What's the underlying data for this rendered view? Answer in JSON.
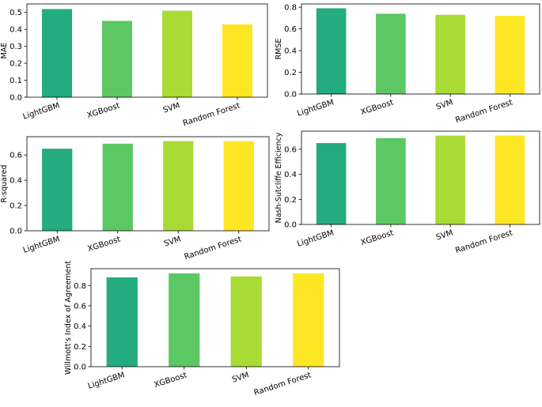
{
  "chart_data": [
    {
      "type": "bar",
      "categories": [
        "LightGBM",
        "XGBoost",
        "SVM",
        "Random Forest"
      ],
      "values": [
        0.52,
        0.45,
        0.51,
        0.43
      ],
      "xlabel": "",
      "ylabel": "MAE",
      "ylim": [
        0,
        0.55
      ],
      "yticks": [
        "0.0",
        "0.1",
        "0.2",
        "0.3",
        "0.4",
        "0.5"
      ],
      "grid": false,
      "legend": "none"
    },
    {
      "type": "bar",
      "categories": [
        "LightGBM",
        "XGBoost",
        "SVM",
        "Random Forest"
      ],
      "values": [
        0.79,
        0.74,
        0.73,
        0.72
      ],
      "xlabel": "",
      "ylabel": "RMSE",
      "ylim": [
        0,
        0.83
      ],
      "yticks": [
        "0.0",
        "0.2",
        "0.4",
        "0.6",
        "0.8"
      ],
      "grid": false,
      "legend": "none"
    },
    {
      "type": "bar",
      "categories": [
        "LightGBM",
        "XGBoost",
        "SVM",
        "Random Forest"
      ],
      "values": [
        0.65,
        0.69,
        0.71,
        0.71
      ],
      "xlabel": "",
      "ylabel": "R-squared",
      "ylim": [
        0,
        0.745
      ],
      "yticks": [
        "0.0",
        "0.2",
        "0.4",
        "0.6"
      ],
      "grid": false,
      "legend": "none"
    },
    {
      "type": "bar",
      "categories": [
        "LightGBM",
        "XGBoost",
        "SVM",
        "Random Forest"
      ],
      "values": [
        0.65,
        0.69,
        0.71,
        0.71
      ],
      "xlabel": "",
      "ylabel": "Nash-Sutcliffe Efficiency",
      "ylim": [
        0,
        0.745
      ],
      "yticks": [
        "0.0",
        "0.2",
        "0.4",
        "0.6"
      ],
      "grid": false,
      "legend": "none"
    },
    {
      "type": "bar",
      "categories": [
        "LightGBM",
        "XGBoost",
        "SVM",
        "Random Forest"
      ],
      "values": [
        0.88,
        0.92,
        0.89,
        0.92
      ],
      "xlabel": "",
      "ylabel": "Willmott's Index of Agreement",
      "ylim": [
        0,
        0.966
      ],
      "yticks": [
        "0.0",
        "0.2",
        "0.4",
        "0.6",
        "0.8"
      ],
      "grid": false,
      "legend": "none"
    }
  ],
  "colors": [
    "#24ab80",
    "#5cc864",
    "#a8db34",
    "#fde725"
  ]
}
